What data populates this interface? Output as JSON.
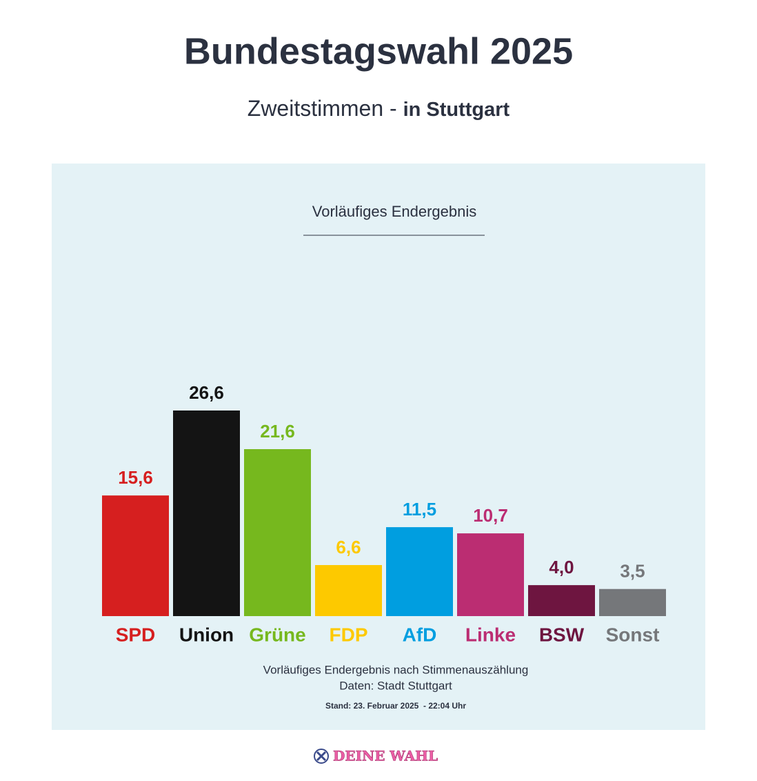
{
  "chart_data": {
    "type": "bar",
    "title": "Bundestagswahl 2025",
    "subtitle": {
      "text": "Zweitstimmen -",
      "emphasis": "in Stuttgart"
    },
    "panel_title": "Vorläufiges Endergebnis",
    "categories": [
      "SPD",
      "Union",
      "Grüne",
      "FDP",
      "AfD",
      "Linke",
      "BSW",
      "Sonst"
    ],
    "values": [
      15.6,
      26.6,
      21.6,
      6.6,
      11.5,
      10.7,
      4.0,
      3.5
    ],
    "value_labels": [
      "15,6",
      "26,6",
      "21,6",
      "6,6",
      "11,5",
      "10,7",
      "4,0",
      "3,5"
    ],
    "colors": [
      "#d61f1f",
      "#141414",
      "#76b81e",
      "#fdc900",
      "#009ee0",
      "#bb2d72",
      "#6e1540",
      "#75777a"
    ],
    "notes": [
      "Vorläufiges Endergebnis nach Stimmenauszählung",
      "Daten: Stadt Stuttgart"
    ],
    "stand": "Stand: 23. Februar 2025  - 22:04 Uhr",
    "logo": "DEINE WAHL"
  }
}
